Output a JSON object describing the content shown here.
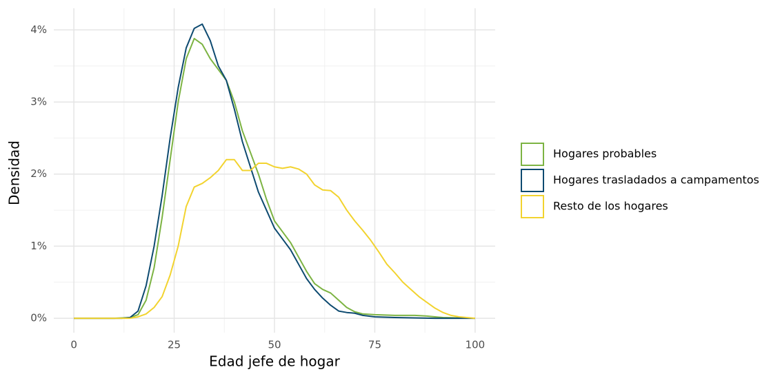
{
  "chart_data": {
    "type": "line",
    "x_label": "Edad jefe de hogar",
    "y_label": "Densidad",
    "xlim": [
      -5,
      105
    ],
    "ylim": [
      -0.2,
      4.3
    ],
    "xticks": [
      0,
      25,
      50,
      75,
      100
    ],
    "yticks": [
      {
        "value": 0,
        "label": "0%"
      },
      {
        "value": 1,
        "label": "1%"
      },
      {
        "value": 2,
        "label": "2%"
      },
      {
        "value": 3,
        "label": "3%"
      },
      {
        "value": 4,
        "label": "4%"
      }
    ],
    "x_minor_ticks": [
      12.5,
      37.5,
      62.5,
      87.5
    ],
    "y_minor_ticks": [
      0.5,
      1.5,
      2.5,
      3.5
    ],
    "grid": true,
    "legend": "right",
    "series": [
      {
        "name": "Hogares probables",
        "color": "#7cb342",
        "x": [
          0,
          10,
          14,
          16,
          18,
          20,
          22,
          24,
          26,
          28,
          30,
          32,
          34,
          36,
          38,
          40,
          42,
          44,
          46,
          48,
          50,
          52,
          54,
          56,
          58,
          60,
          62,
          64,
          66,
          68,
          70,
          72,
          75,
          80,
          85,
          88,
          92,
          100
        ],
        "values": [
          0,
          0,
          0.01,
          0.05,
          0.25,
          0.7,
          1.4,
          2.2,
          3.0,
          3.6,
          3.88,
          3.8,
          3.6,
          3.45,
          3.3,
          3.0,
          2.6,
          2.3,
          2.0,
          1.65,
          1.35,
          1.2,
          1.05,
          0.85,
          0.65,
          0.48,
          0.4,
          0.35,
          0.25,
          0.15,
          0.09,
          0.06,
          0.05,
          0.04,
          0.04,
          0.03,
          0.01,
          0
        ]
      },
      {
        "name": "Hogares trasladados a campamentos",
        "color": "#0d4a70",
        "x": [
          0,
          12,
          14,
          16,
          18,
          20,
          22,
          24,
          26,
          28,
          30,
          32,
          34,
          36,
          38,
          40,
          42,
          44,
          46,
          48,
          50,
          52,
          54,
          56,
          58,
          60,
          62,
          64,
          66,
          68,
          70,
          72,
          75,
          80,
          90,
          100
        ],
        "values": [
          0,
          0,
          0.01,
          0.1,
          0.45,
          1.0,
          1.7,
          2.5,
          3.2,
          3.75,
          4.02,
          4.08,
          3.85,
          3.5,
          3.3,
          2.9,
          2.45,
          2.1,
          1.75,
          1.5,
          1.25,
          1.1,
          0.95,
          0.75,
          0.55,
          0.4,
          0.28,
          0.18,
          0.1,
          0.08,
          0.07,
          0.04,
          0.02,
          0.01,
          0,
          0
        ]
      },
      {
        "name": "Resto de los hogares",
        "color": "#f2d32e",
        "x": [
          0,
          14,
          16,
          18,
          20,
          22,
          24,
          26,
          28,
          30,
          32,
          34,
          36,
          38,
          40,
          42,
          44,
          46,
          48,
          50,
          52,
          54,
          56,
          58,
          60,
          62,
          64,
          66,
          68,
          70,
          72,
          74,
          76,
          78,
          80,
          82,
          84,
          86,
          88,
          90,
          92,
          94,
          96,
          100
        ],
        "values": [
          0,
          0,
          0.02,
          0.06,
          0.15,
          0.3,
          0.6,
          1.0,
          1.55,
          1.82,
          1.87,
          1.95,
          2.05,
          2.2,
          2.2,
          2.05,
          2.05,
          2.15,
          2.15,
          2.1,
          2.08,
          2.1,
          2.07,
          2.0,
          1.85,
          1.78,
          1.77,
          1.68,
          1.5,
          1.35,
          1.22,
          1.08,
          0.92,
          0.75,
          0.63,
          0.5,
          0.4,
          0.3,
          0.22,
          0.14,
          0.08,
          0.04,
          0.02,
          0
        ]
      }
    ]
  }
}
